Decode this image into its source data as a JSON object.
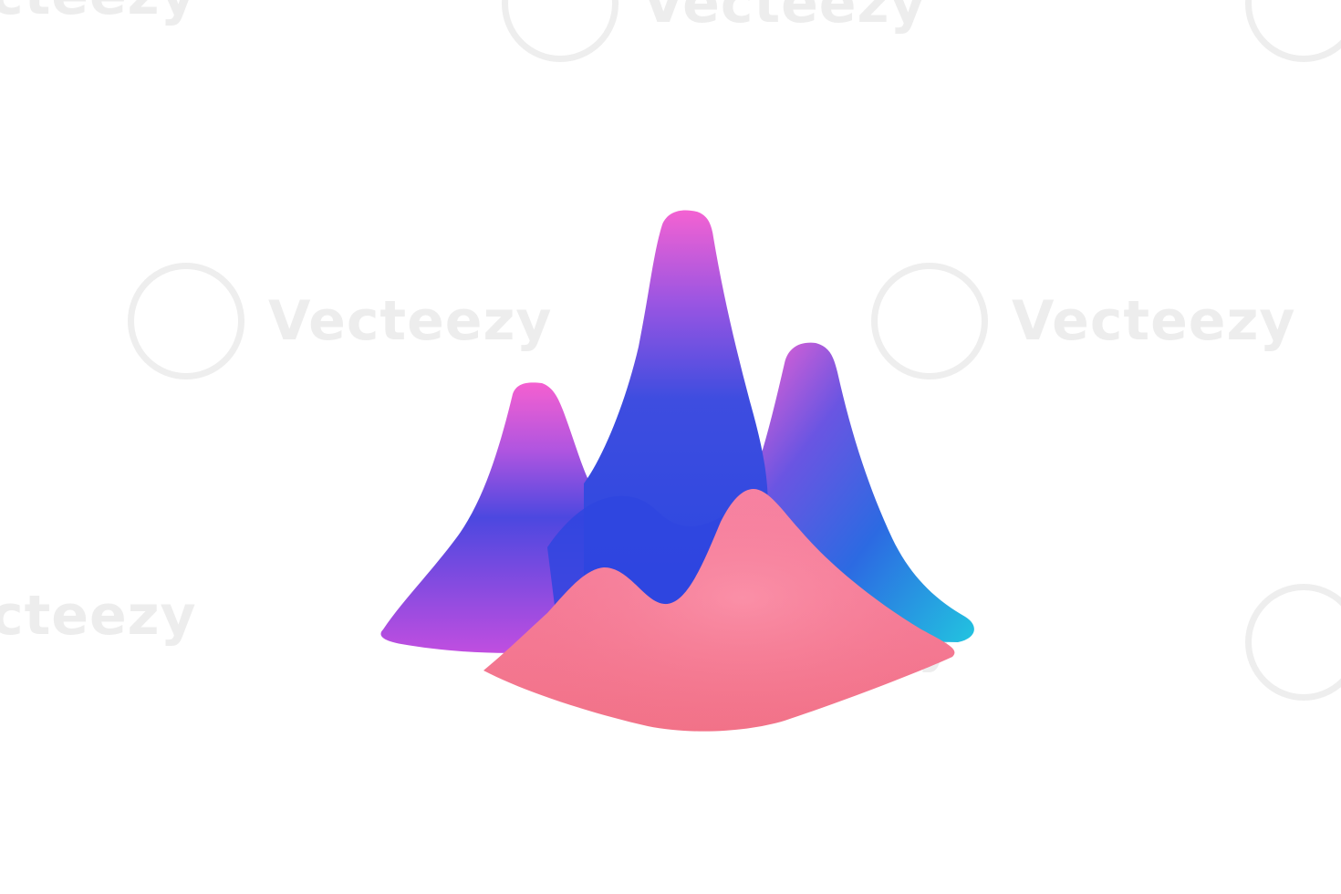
{
  "watermark": {
    "brand": "Vecteezy",
    "brand_partial": "cteezy",
    "logo_icon": "vecteezy-v-logo-icon"
  },
  "colors": {
    "background": "#ffffff",
    "peak_top": "#f25fd0",
    "peak_mid": "#3f4fe0",
    "peak_side": "#2ab8e0",
    "base_pink": "#f27a90",
    "watermark_gray": "#dedede"
  },
  "illustration": {
    "icon": "3d-mountain-peaks-chart-icon"
  }
}
